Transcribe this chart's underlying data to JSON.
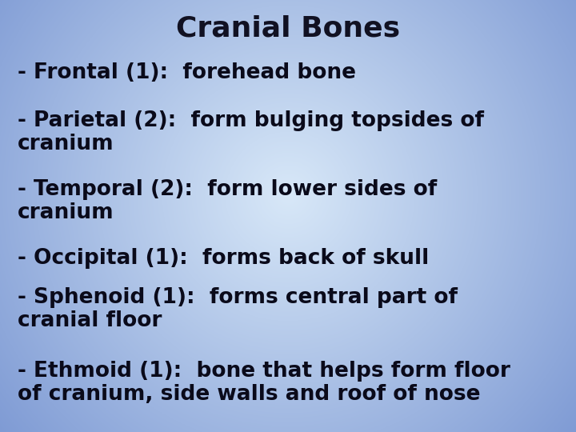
{
  "title": "Cranial Bones",
  "title_fontsize": 26,
  "title_color": "#111122",
  "title_weight": "bold",
  "body_lines": [
    "- Frontal (1):  forehead bone",
    "- Parietal (2):  form bulging topsides of\ncranium",
    "- Temporal (2):  form lower sides of\ncranium",
    "- Occipital (1):  forms back of skull",
    "- Sphenoid (1):  forms central part of\ncranial floor",
    "- Ethmoid (1):  bone that helps form floor\nof cranium, side walls and roof of nose"
  ],
  "text_fontsize": 19,
  "text_color": "#0a0a1a",
  "text_weight": "bold",
  "bg_color_center": "#d8e8f8",
  "bg_color_edge": "#6080c8",
  "fig_width": 7.2,
  "fig_height": 5.4,
  "dpi": 100
}
